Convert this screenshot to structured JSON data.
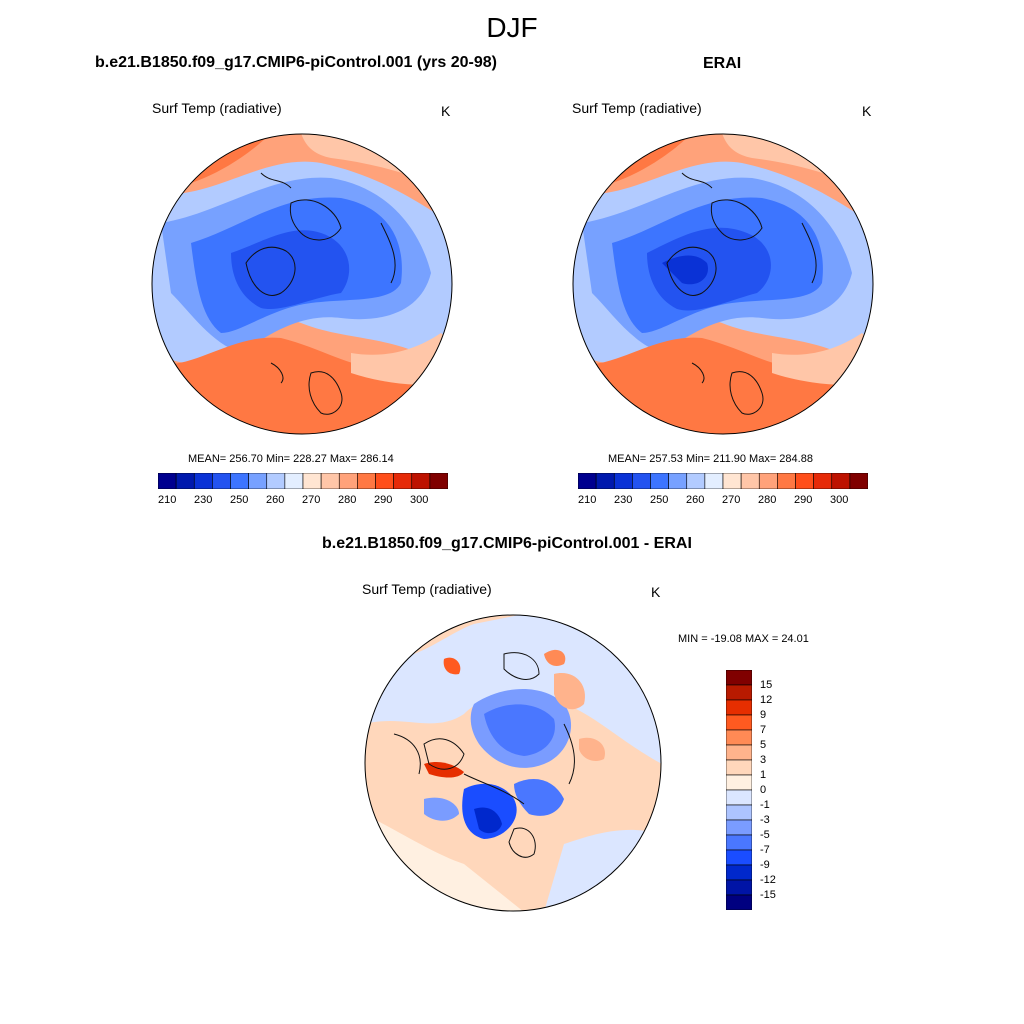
{
  "figure": {
    "title": "DJF"
  },
  "colors": {
    "abs_scale": [
      "#00008f",
      "#0019ad",
      "#0a32d6",
      "#2353f0",
      "#3d75ff",
      "#77a1ff",
      "#b2cbff",
      "#e3eeff",
      "#ffe5d2",
      "#ffc6a8",
      "#ffa27a",
      "#ff7843",
      "#ff4e1a",
      "#e62a08",
      "#bd1200",
      "#800000"
    ],
    "diff_scale": [
      "#000080",
      "#0014a6",
      "#0028cc",
      "#1a4dff",
      "#4a77ff",
      "#7a9cff",
      "#adc4ff",
      "#dbe6ff",
      "#fff0e1",
      "#ffd7bb",
      "#ffb38c",
      "#ff8a55",
      "#ff5a20",
      "#e62e00",
      "#b81a00",
      "#800000"
    ],
    "coastline": "#111111"
  },
  "panels": [
    {
      "name": "model",
      "title": "b.e21.B1850.f09_g17.CMIP6-piControl.001 (yrs 20-98)",
      "variable": "Surf Temp (radiative)",
      "units": "K",
      "mean_text": "MEAN= 256.70  Min= 228.27  Max= 286.14",
      "stats": {
        "mean": 256.7,
        "min": 228.27,
        "max": 286.14
      },
      "colorbar_labels": [
        "210",
        "230",
        "250",
        "260",
        "270",
        "280",
        "290",
        "300"
      ]
    },
    {
      "name": "obs",
      "title": "ERAI",
      "variable": "Surf Temp (radiative)",
      "units": "K",
      "mean_text": "MEAN= 257.53  Min= 211.90  Max= 284.88",
      "stats": {
        "mean": 257.53,
        "min": 211.9,
        "max": 284.88
      },
      "colorbar_labels": [
        "210",
        "230",
        "250",
        "260",
        "270",
        "280",
        "290",
        "300"
      ]
    },
    {
      "name": "difference",
      "title": "b.e21.B1850.f09_g17.CMIP6-piControl.001 - ERAI",
      "variable": "Surf Temp (radiative)",
      "units": "K",
      "minmax_text": "MIN = -19.08 MAX =  24.01",
      "stats": {
        "min": -19.08,
        "max": 24.01
      },
      "colorbar_labels": [
        "15",
        "12",
        "9",
        "7",
        "5",
        "3",
        "1",
        "0",
        "-1",
        "-3",
        "-5",
        "-7",
        "-9",
        "-12",
        "-15"
      ]
    }
  ],
  "map": {
    "projection": "north-polar-stereographic",
    "region": "Arctic / Northern Hemisphere",
    "season": "DJF"
  }
}
